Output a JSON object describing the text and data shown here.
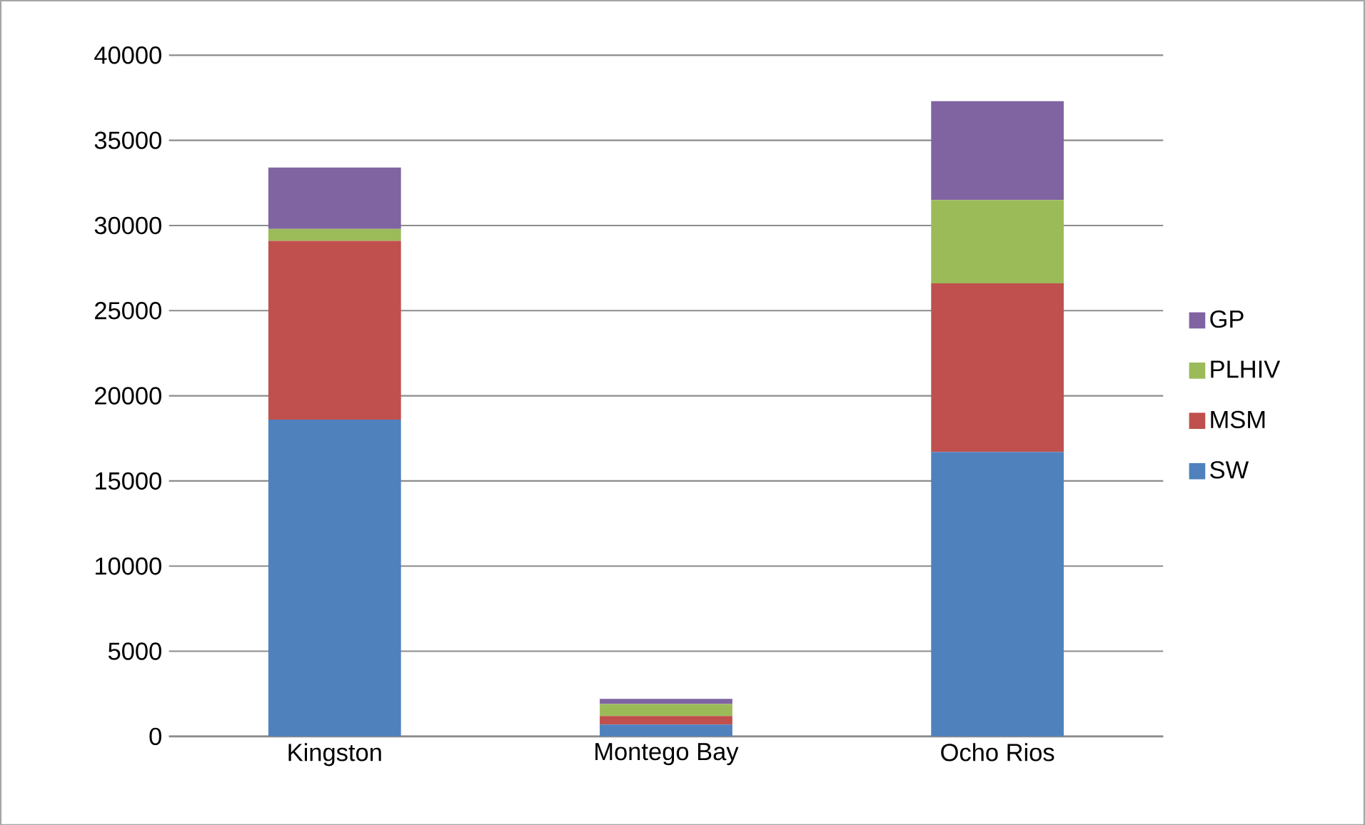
{
  "chart_data": {
    "type": "bar",
    "stacked": true,
    "categories": [
      "Kingston",
      "Montego Bay",
      "Ocho Rios"
    ],
    "series": [
      {
        "name": "SW",
        "color": "#4f81bd",
        "values": [
          18600,
          700,
          16700
        ]
      },
      {
        "name": "MSM",
        "color": "#c0504d",
        "values": [
          10500,
          500,
          9900
        ]
      },
      {
        "name": "PLHIV",
        "color": "#9bbb59",
        "values": [
          700,
          700,
          4900
        ]
      },
      {
        "name": "GP",
        "color": "#8064a2",
        "values": [
          3600,
          300,
          5800
        ]
      }
    ],
    "ylim": [
      0,
      40000
    ],
    "yticks": [
      0,
      5000,
      10000,
      15000,
      20000,
      25000,
      30000,
      35000,
      40000
    ],
    "grid": "y",
    "legend": "right"
  }
}
